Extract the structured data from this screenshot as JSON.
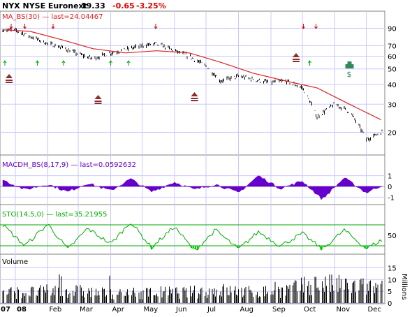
{
  "header": {
    "symbol": "NYX NYSE Euronext",
    "last": "19.33",
    "change": "-0.65",
    "change_pct": "-3.25%"
  },
  "colors": {
    "price": "#000000",
    "ma": "#dd2222",
    "macd": "#6600cc",
    "sto": "#00aa00",
    "sto_fill": "#00dd00",
    "sell_arrow": "#dd0000",
    "buy_arrow": "#00aa00",
    "volume": "#000000",
    "grid": "#c8c8ff",
    "event_marker": "#8b2e2e",
    "dividend_marker": "#2e8b57"
  },
  "chart_data": [
    {
      "type": "line",
      "title": "NYX NYSE Euronext",
      "legend": "MA_BS(30) — last=24.04467",
      "y_scale": "log",
      "ylim": [
        15,
        100
      ],
      "y_ticks": [
        "90",
        "70",
        "60",
        "50",
        "40",
        "30",
        "20"
      ],
      "x_ticks": [
        "07",
        "08",
        "Feb",
        "Mar",
        "Apr",
        "May",
        "Jun",
        "Jul",
        "Aug",
        "Sep",
        "Oct",
        "Nov",
        "Dec"
      ],
      "series": [
        {
          "name": "NYX",
          "x": [
            "2007-12-20",
            "2008-01-02",
            "2008-01-15",
            "2008-02-01",
            "2008-02-15",
            "2008-03-01",
            "2008-03-15",
            "2008-04-01",
            "2008-04-15",
            "2008-05-01",
            "2008-05-15",
            "2008-06-01",
            "2008-06-15",
            "2008-07-01",
            "2008-07-15",
            "2008-08-01",
            "2008-08-15",
            "2008-09-01",
            "2008-09-15",
            "2008-10-01",
            "2008-10-15",
            "2008-11-01",
            "2008-11-15",
            "2008-12-01",
            "2008-12-15"
          ],
          "values": [
            88,
            87,
            80,
            72,
            68,
            62,
            58,
            63,
            66,
            70,
            72,
            65,
            60,
            52,
            42,
            45,
            43,
            41,
            42,
            38,
            25,
            30,
            27,
            18,
            20
          ]
        },
        {
          "name": "MA_BS(30)",
          "x": [
            "2007-12-20",
            "2008-01-15",
            "2008-02-15",
            "2008-03-15",
            "2008-04-15",
            "2008-05-15",
            "2008-06-15",
            "2008-07-15",
            "2008-08-15",
            "2008-09-15",
            "2008-10-15",
            "2008-11-15",
            "2008-12-15"
          ],
          "values": [
            88,
            86,
            76,
            67,
            63,
            65,
            63,
            55,
            47,
            42,
            38,
            30,
            24
          ]
        }
      ]
    },
    {
      "type": "area",
      "title": "MACDH_BS(8,17,9)",
      "legend": "MACDH_BS(8,17,9) — last=0.0592632",
      "ylim": [
        -1.5,
        1.5
      ],
      "y_ticks": [
        "1",
        "0",
        "-1"
      ],
      "x": [
        "2007-12-20",
        "2008-01-10",
        "2008-02-01",
        "2008-02-20",
        "2008-03-10",
        "2008-04-01",
        "2008-04-20",
        "2008-05-10",
        "2008-06-01",
        "2008-06-20",
        "2008-07-10",
        "2008-08-01",
        "2008-08-20",
        "2008-09-10",
        "2008-10-01",
        "2008-10-20",
        "2008-11-10",
        "2008-12-01",
        "2008-12-15"
      ],
      "values": [
        0.6,
        -0.3,
        0.2,
        -0.5,
        0.3,
        -0.4,
        0.7,
        -0.5,
        0.4,
        -0.3,
        0.2,
        -0.6,
        1.0,
        -0.2,
        0.5,
        -1.2,
        0.8,
        -0.6,
        0.06
      ]
    },
    {
      "type": "line",
      "title": "STO(14,5,0)",
      "legend": "STO(14,5,0) — last=35.21955",
      "ylim": [
        0,
        100
      ],
      "y_ticks": [
        "50"
      ],
      "x": [
        "2007-12-20",
        "2008-01-10",
        "2008-02-01",
        "2008-02-20",
        "2008-03-10",
        "2008-04-01",
        "2008-04-20",
        "2008-05-10",
        "2008-06-01",
        "2008-06-20",
        "2008-07-10",
        "2008-08-01",
        "2008-08-20",
        "2008-09-10",
        "2008-10-01",
        "2008-10-20",
        "2008-11-10",
        "2008-12-01",
        "2008-12-15"
      ],
      "values": [
        80,
        20,
        82,
        10,
        70,
        25,
        88,
        15,
        75,
        5,
        65,
        10,
        60,
        20,
        55,
        10,
        65,
        12,
        35
      ]
    },
    {
      "type": "bar",
      "title": "Volume",
      "ylabel": "Millions",
      "ylim": [
        0,
        16
      ],
      "y_ticks": [
        "15",
        "10",
        "5",
        "0"
      ],
      "x": [
        "Jan",
        "Feb",
        "Mar",
        "Apr",
        "May",
        "Jun",
        "Jul",
        "Aug",
        "Sep",
        "Oct",
        "Nov",
        "Dec"
      ],
      "values": [
        5,
        6,
        5,
        4,
        5,
        5,
        6,
        5,
        6,
        9,
        8,
        7
      ]
    }
  ]
}
